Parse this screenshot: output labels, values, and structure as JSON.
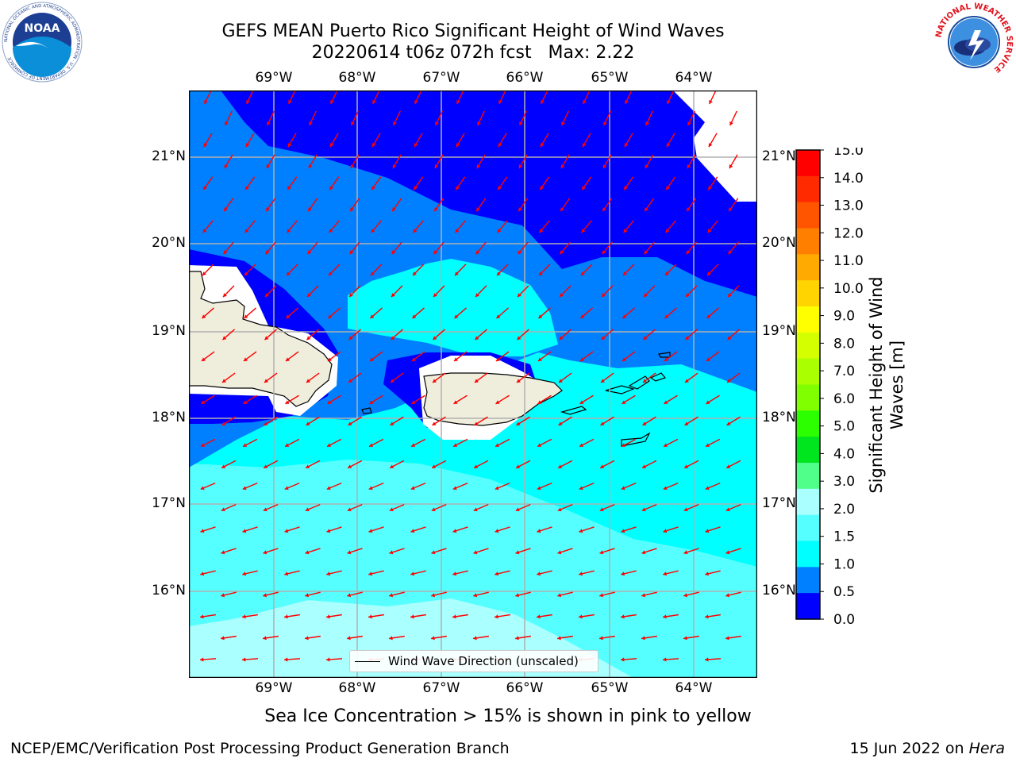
{
  "header": {
    "title_line1": "GEFS MEAN Puerto Rico Significant Height of Wind Waves",
    "title_line2": "20220614 t06z 072h fcst   Max: 2.22"
  },
  "map": {
    "lon_labels": [
      "69°W",
      "68°W",
      "67°W",
      "66°W",
      "65°W",
      "64°W"
    ],
    "lat_labels": [
      "21°N",
      "20°N",
      "19°N",
      "18°N",
      "17°N",
      "16°N"
    ],
    "legend_label": "Wind Wave Direction (unscaled)",
    "arrow_color": "#ff0000",
    "land_color": "#efeedd"
  },
  "colorbar": {
    "label": "Significant Height of Wind Waves [m]",
    "ticks": [
      "15.0",
      "14.0",
      "13.0",
      "12.0",
      "11.0",
      "10.0",
      "9.0",
      "8.0",
      "7.0",
      "6.0",
      "5.0",
      "4.0",
      "3.0",
      "2.0",
      "1.5",
      "1.0",
      "0.5",
      "0.0"
    ],
    "colors": [
      "#ff0000",
      "#ff2a00",
      "#ff5500",
      "#ff8000",
      "#ffaa00",
      "#ffd400",
      "#ffff00",
      "#d4ff00",
      "#aaff00",
      "#80ff00",
      "#2bff00",
      "#00e61e",
      "#4fff8a",
      "#aaffff",
      "#55ffff",
      "#00ffff",
      "#0080ff",
      "#0000ff"
    ]
  },
  "notes": {
    "sea_ice": "Sea Ice Concentration > 15% is shown in pink to yellow"
  },
  "footer": {
    "left": "NCEP/EMC/Verification Post Processing Product Generation Branch",
    "right_prefix": "15 Jun 2022 on ",
    "right_host": "Hera"
  },
  "logos": {
    "noaa_text": "NOAA",
    "noaa_ring": "NATIONAL OCEANIC AND ATMOSPHERIC ADMINISTRATION · U.S. DEPARTMENT OF COMMERCE",
    "nws_ring": "NATIONAL WEATHER SERVICE"
  }
}
